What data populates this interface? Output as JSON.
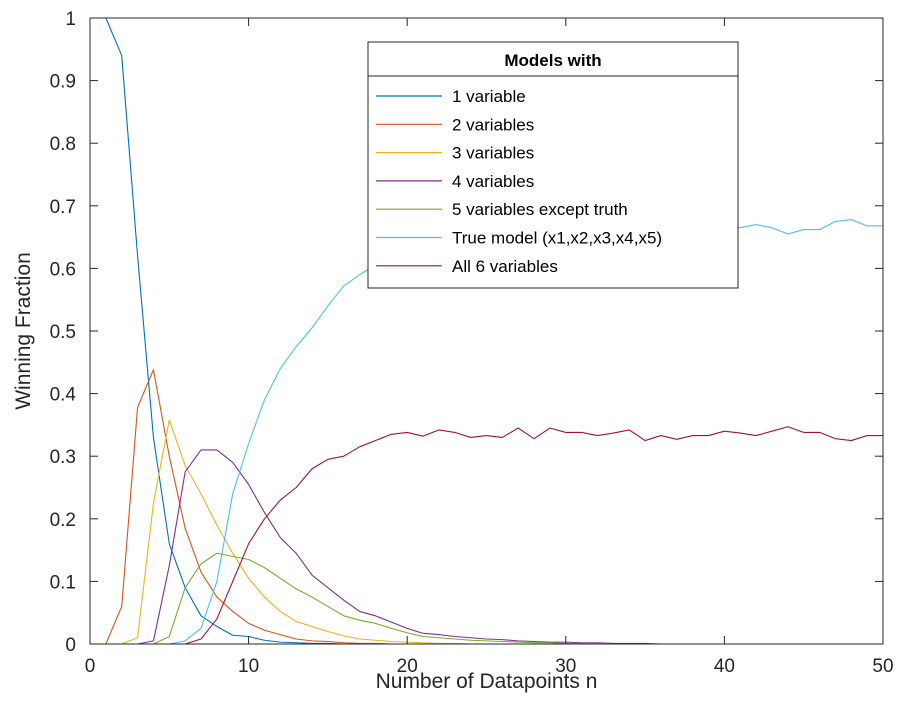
{
  "chart_data": {
    "type": "line",
    "title": "",
    "xlabel": "Number of Datapoints n",
    "ylabel": "Winning Fraction",
    "xlim": [
      0,
      50
    ],
    "ylim": [
      0,
      1
    ],
    "xticks": [
      0,
      10,
      20,
      30,
      40,
      50
    ],
    "xtick_labels": [
      "0",
      "10",
      "20",
      "30",
      "40",
      "50"
    ],
    "yticks": [
      0,
      0.1,
      0.2,
      0.3,
      0.4,
      0.5,
      0.6,
      0.7,
      0.8,
      0.9,
      1
    ],
    "ytick_labels": [
      "0",
      "0.1",
      "0.2",
      "0.3",
      "0.4",
      "0.5",
      "0.6",
      "0.7",
      "0.8",
      "0.9",
      "1"
    ],
    "grid": false,
    "legend": {
      "title": "Models with",
      "placement": "top-center"
    },
    "x": [
      1,
      2,
      3,
      4,
      5,
      6,
      7,
      8,
      9,
      10,
      11,
      12,
      13,
      14,
      15,
      16,
      17,
      18,
      19,
      20,
      21,
      22,
      23,
      24,
      25,
      26,
      27,
      28,
      29,
      30,
      31,
      32,
      33,
      34,
      35,
      36,
      37,
      38,
      39,
      40,
      41,
      42,
      43,
      44,
      45,
      46,
      47,
      48,
      49,
      50
    ],
    "series": [
      {
        "name": "1 variable",
        "color": "#0072BD",
        "values": [
          1.0,
          0.94,
          0.62,
          0.33,
          0.16,
          0.09,
          0.045,
          0.028,
          0.014,
          0.012,
          0.006,
          0.003,
          0.002,
          0.001,
          0.001,
          0,
          0,
          0,
          0,
          0,
          0,
          0,
          0,
          0,
          0,
          0,
          0,
          0,
          0,
          0,
          0,
          0,
          0,
          0,
          0,
          0,
          0,
          0,
          0,
          0,
          0,
          0,
          0,
          0,
          0,
          0,
          0,
          0,
          0,
          0
        ]
      },
      {
        "name": "2 variables",
        "color": "#D95319",
        "values": [
          0,
          0.06,
          0.378,
          0.438,
          0.3,
          0.185,
          0.115,
          0.075,
          0.052,
          0.033,
          0.022,
          0.015,
          0.008,
          0.005,
          0.004,
          0.002,
          0.001,
          0.001,
          0,
          0,
          0,
          0,
          0,
          0,
          0,
          0,
          0,
          0,
          0,
          0,
          0,
          0,
          0,
          0,
          0,
          0,
          0,
          0,
          0,
          0,
          0,
          0,
          0,
          0,
          0,
          0,
          0,
          0,
          0,
          0
        ]
      },
      {
        "name": "3 variables",
        "color": "#EDB120",
        "values": [
          0,
          0,
          0.01,
          0.225,
          0.358,
          0.285,
          0.24,
          0.19,
          0.145,
          0.105,
          0.075,
          0.052,
          0.036,
          0.028,
          0.02,
          0.013,
          0.008,
          0.006,
          0.004,
          0.003,
          0.002,
          0.001,
          0.001,
          0,
          0,
          0,
          0,
          0,
          0,
          0,
          0,
          0,
          0,
          0,
          0,
          0,
          0,
          0,
          0,
          0,
          0,
          0,
          0,
          0,
          0,
          0,
          0,
          0,
          0,
          0
        ]
      },
      {
        "name": "4 variables",
        "color": "#7E2F8E",
        "values": [
          0,
          0,
          0,
          0.005,
          0.125,
          0.275,
          0.31,
          0.31,
          0.29,
          0.255,
          0.21,
          0.17,
          0.145,
          0.11,
          0.09,
          0.07,
          0.052,
          0.045,
          0.035,
          0.025,
          0.017,
          0.015,
          0.012,
          0.01,
          0.008,
          0.007,
          0.005,
          0.004,
          0.003,
          0.003,
          0.002,
          0.002,
          0.001,
          0.001,
          0.001,
          0,
          0,
          0,
          0,
          0,
          0,
          0,
          0,
          0,
          0,
          0,
          0,
          0,
          0,
          0
        ]
      },
      {
        "name": "5 variables except truth",
        "color": "#77AC30",
        "values": [
          0,
          0,
          0,
          0,
          0.012,
          0.09,
          0.128,
          0.145,
          0.14,
          0.135,
          0.122,
          0.105,
          0.088,
          0.075,
          0.06,
          0.045,
          0.038,
          0.033,
          0.025,
          0.018,
          0.012,
          0.01,
          0.008,
          0.006,
          0.005,
          0.004,
          0.003,
          0.002,
          0.002,
          0.001,
          0.001,
          0.001,
          0,
          0,
          0,
          0,
          0,
          0,
          0,
          0,
          0,
          0,
          0,
          0,
          0,
          0,
          0,
          0,
          0,
          0
        ]
      },
      {
        "name": "True model (x1,x2,x3,x4,x5)",
        "color": "#4DBEEE",
        "values": [
          0,
          0,
          0,
          0,
          0,
          0.005,
          0.025,
          0.1,
          0.24,
          0.32,
          0.39,
          0.44,
          0.475,
          0.505,
          0.54,
          0.572,
          0.59,
          0.605,
          0.62,
          0.625,
          0.632,
          0.638,
          0.632,
          0.648,
          0.642,
          0.645,
          0.64,
          0.65,
          0.645,
          0.65,
          0.648,
          0.645,
          0.648,
          0.655,
          0.66,
          0.66,
          0.662,
          0.665,
          0.66,
          0.665,
          0.665,
          0.67,
          0.665,
          0.655,
          0.662,
          0.662,
          0.675,
          0.678,
          0.668,
          0.668
        ]
      },
      {
        "name": "All 6 variables",
        "color": "#A2142F",
        "values": [
          0,
          0,
          0,
          0,
          0,
          0,
          0.008,
          0.04,
          0.1,
          0.16,
          0.2,
          0.23,
          0.25,
          0.28,
          0.295,
          0.3,
          0.315,
          0.325,
          0.335,
          0.338,
          0.332,
          0.342,
          0.338,
          0.33,
          0.333,
          0.33,
          0.345,
          0.328,
          0.345,
          0.338,
          0.338,
          0.333,
          0.337,
          0.342,
          0.325,
          0.333,
          0.327,
          0.333,
          0.333,
          0.34,
          0.337,
          0.333,
          0.34,
          0.347,
          0.338,
          0.338,
          0.328,
          0.325,
          0.333,
          0.333
        ]
      }
    ]
  }
}
